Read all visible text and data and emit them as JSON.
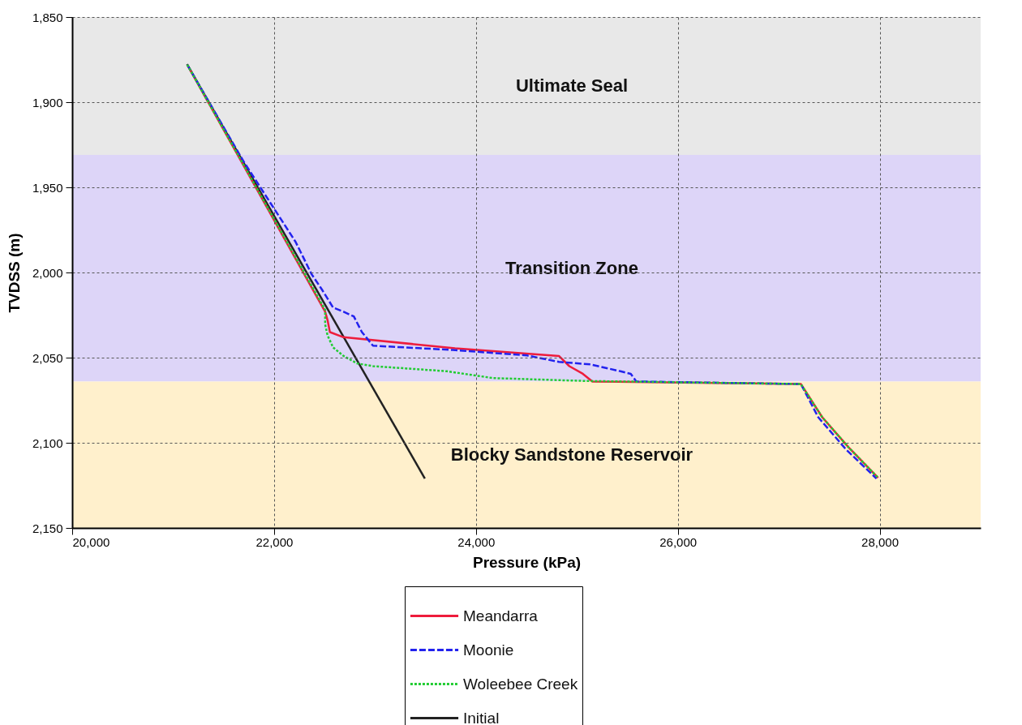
{
  "chart_data": {
    "type": "line",
    "xlabel": "Pressure (kPa)",
    "ylabel": "TVDSS (m)",
    "xlim": [
      20000,
      29000
    ],
    "xticks": [
      {
        "value": 20000,
        "label": "20,000"
      },
      {
        "value": 22000,
        "label": "22,000"
      },
      {
        "value": 24000,
        "label": "24,000"
      },
      {
        "value": 26000,
        "label": "26,000"
      },
      {
        "value": 28000,
        "label": "28,000"
      }
    ],
    "ylim": [
      2150,
      1850
    ],
    "yticks": [
      {
        "value": 1850,
        "label": "1,850"
      },
      {
        "value": 1900,
        "label": "1,900"
      },
      {
        "value": 1950,
        "label": "1,950"
      },
      {
        "value": 2000,
        "label": "2,000"
      },
      {
        "value": 2050,
        "label": "2,050"
      },
      {
        "value": 2100,
        "label": "2,100"
      },
      {
        "value": 2150,
        "label": "2,150"
      }
    ],
    "grid": true,
    "legend": "bottom",
    "bands": [
      {
        "axis": "y",
        "from": 1850,
        "to": 1931,
        "label": "Ultimate Seal",
        "color": "#e8e8e8"
      },
      {
        "axis": "y",
        "from": 1931,
        "to": 2064,
        "label": "Transition Zone",
        "color": "#ddd5f8"
      },
      {
        "axis": "y",
        "from": 2064,
        "to": 2150,
        "label": "Blocky Sandstone Reservoir",
        "color": "#fff0cc"
      }
    ],
    "series": [
      {
        "name": "Meandarra",
        "color": "#ee1c3c",
        "line_style": "solid",
        "x": [
          21140,
          22506,
          22530,
          22553,
          22688,
          23794,
          24822,
          24925,
          25059,
          25154,
          27219,
          27431,
          27692,
          27984
        ],
        "values": [
          1878,
          2023,
          2028,
          2035,
          2038,
          2044.5,
          2049,
          2055,
          2059.5,
          2064,
          2065.5,
          2085,
          2102.7,
          2120.5
        ]
      },
      {
        "name": "Moonie",
        "color": "#2222ee",
        "line_style": "dashed",
        "x": [
          21140,
          21700,
          22213,
          22372,
          22474,
          22585,
          22688,
          22790,
          22870,
          22980,
          23771,
          24506,
          24822,
          25138,
          25431,
          25534,
          25589,
          27219,
          27391,
          27668,
          27968
        ],
        "values": [
          1878,
          1935,
          1982,
          2001,
          2010,
          2020.6,
          2023,
          2025.8,
          2035,
          2043,
          2045.5,
          2048.7,
          2052.5,
          2054,
          2058,
          2059.5,
          2064,
          2065.5,
          2085,
          2104,
          2121
        ]
      },
      {
        "name": "Woleebee Creek",
        "color": "#22cc33",
        "line_style": "dotted",
        "x": [
          21140,
          22506,
          22506,
          22530,
          22585,
          22688,
          22822,
          22980,
          23715,
          24166,
          25083,
          27219,
          27431,
          27692,
          27984
        ],
        "values": [
          1878,
          2022,
          2030.5,
          2037,
          2044,
          2049,
          2053.4,
          2055,
          2058,
          2062,
          2063.7,
          2065.5,
          2085,
          2102.7,
          2120.5
        ]
      },
      {
        "name": "Initial",
        "color": "#222222",
        "line_style": "solid",
        "x": [
          21138,
          23494
        ],
        "values": [
          1877.7,
          2121
        ]
      }
    ]
  }
}
